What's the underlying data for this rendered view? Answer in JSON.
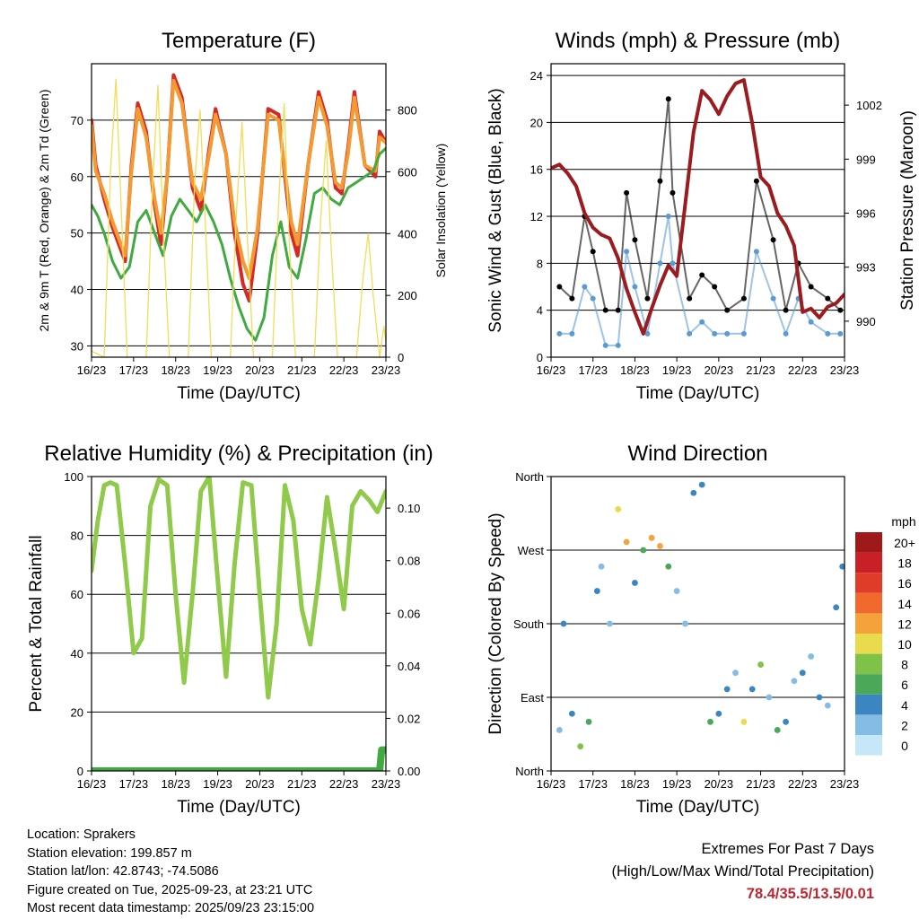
{
  "colors": {
    "red": "#d42a26",
    "orange": "#f39a33",
    "green": "#3faa3f",
    "yellow": "#f1dd58",
    "black": "#000000",
    "blue": "#5b9bd5",
    "maroon": "#9b1c20",
    "rh_green": "#8fca4a",
    "precip_green": "#3faa3f"
  },
  "x_ticks": [
    "16/23",
    "17/23",
    "18/23",
    "19/23",
    "20/23",
    "21/23",
    "22/23",
    "23/23"
  ],
  "x_label": "Time (Day/UTC)",
  "chart_data": [
    {
      "id": "temperature",
      "type": "line",
      "title": "Temperature (F)",
      "xlabel": "Time (Day/UTC)",
      "ylabel": "2m & 9m T (Red, Orange) & 2m Td (Green)",
      "ylabel_right": "Solar Insolation (Yellow)",
      "ylim": [
        28,
        80
      ],
      "yticks": [
        30,
        40,
        50,
        60,
        70
      ],
      "ylim_right": [
        0,
        950
      ],
      "yticks_right": [
        0,
        200,
        400,
        600,
        800
      ],
      "x_days": [
        0,
        7
      ],
      "series": [
        {
          "name": "2m T",
          "color": "red",
          "x": [
            0,
            0.1,
            0.3,
            0.5,
            0.7,
            0.8,
            0.95,
            1.1,
            1.3,
            1.5,
            1.65,
            1.8,
            1.95,
            2.15,
            2.4,
            2.6,
            2.8,
            2.95,
            3.2,
            3.4,
            3.6,
            3.75,
            3.95,
            4.2,
            4.45,
            4.6,
            4.75,
            4.9,
            5.15,
            5.4,
            5.6,
            5.8,
            5.95,
            6.1,
            6.25,
            6.5,
            6.75,
            6.85,
            7
          ],
          "y": [
            70,
            62,
            56,
            51,
            47,
            45,
            62,
            73,
            68,
            55,
            48,
            60,
            78,
            74,
            58,
            54,
            65,
            72,
            64,
            50,
            41,
            38,
            50,
            72,
            71,
            60,
            50,
            46,
            62,
            75,
            70,
            58,
            57,
            65,
            75,
            62,
            60,
            68,
            66
          ]
        },
        {
          "name": "9m T",
          "color": "orange",
          "x": [
            0,
            0.1,
            0.3,
            0.5,
            0.7,
            0.8,
            0.95,
            1.1,
            1.3,
            1.5,
            1.65,
            1.8,
            1.95,
            2.15,
            2.4,
            2.6,
            2.8,
            2.95,
            3.2,
            3.4,
            3.6,
            3.75,
            3.95,
            4.2,
            4.45,
            4.6,
            4.75,
            4.9,
            5.15,
            5.4,
            5.6,
            5.8,
            5.95,
            6.1,
            6.25,
            6.5,
            6.75,
            6.85,
            7
          ],
          "y": [
            69,
            61,
            57,
            52,
            48,
            46,
            61,
            72,
            67,
            56,
            50,
            60,
            77,
            73,
            59,
            56,
            64,
            71,
            64,
            52,
            45,
            42,
            51,
            71,
            70,
            61,
            52,
            48,
            62,
            74,
            69,
            59,
            58,
            64,
            74,
            62,
            61,
            67,
            66
          ]
        },
        {
          "name": "2m Td",
          "color": "green",
          "x": [
            0,
            0.15,
            0.3,
            0.5,
            0.7,
            0.9,
            1.1,
            1.3,
            1.5,
            1.7,
            1.9,
            2.1,
            2.3,
            2.5,
            2.7,
            2.9,
            3.1,
            3.3,
            3.5,
            3.7,
            3.9,
            4.1,
            4.3,
            4.5,
            4.7,
            4.9,
            5.1,
            5.3,
            5.5,
            5.7,
            5.9,
            6.1,
            6.3,
            6.5,
            6.7,
            6.85,
            7
          ],
          "y": [
            55,
            53,
            50,
            45,
            42,
            44,
            52,
            54,
            50,
            46,
            53,
            56,
            54,
            52,
            55,
            52,
            48,
            42,
            37,
            33,
            31,
            35,
            46,
            52,
            44,
            42,
            49,
            57,
            58,
            56,
            55,
            58,
            59,
            60,
            61,
            64,
            65
          ]
        },
        {
          "name": "Solar Insolation",
          "color": "yellow",
          "axis": "right",
          "x": [
            0,
            0.3,
            0.45,
            0.58,
            0.7,
            0.85,
            1.3,
            1.45,
            1.58,
            1.7,
            1.85,
            2.3,
            2.45,
            2.58,
            2.7,
            2.85,
            3.3,
            3.45,
            3.58,
            3.7,
            3.85,
            4.3,
            4.45,
            4.58,
            4.7,
            4.85,
            5.3,
            5.45,
            5.58,
            5.7,
            5.85,
            6.3,
            6.45,
            6.58,
            6.7,
            6.85,
            6.95,
            7
          ],
          "y": [
            20,
            0,
            600,
            900,
            500,
            0,
            0,
            550,
            880,
            420,
            0,
            0,
            560,
            800,
            450,
            0,
            0,
            480,
            760,
            400,
            0,
            0,
            500,
            820,
            380,
            0,
            0,
            450,
            700,
            350,
            0,
            0,
            250,
            400,
            200,
            0,
            100,
            50
          ]
        }
      ]
    },
    {
      "id": "winds",
      "type": "scatter",
      "title": "Winds (mph) & Pressure (mb)",
      "xlabel": "Time (Day/UTC)",
      "ylabel": "Sonic Wind & Gust (Blue, Black)",
      "ylabel_right": "Station Pressure (Maroon)",
      "ylim": [
        0,
        25
      ],
      "yticks": [
        0,
        4,
        8,
        12,
        16,
        20,
        24
      ],
      "ylim_right": [
        988,
        1004.3
      ],
      "yticks_right": [
        990,
        993,
        996,
        999,
        1002
      ],
      "x_days": [
        0,
        7
      ],
      "series": [
        {
          "name": "Gust",
          "color": "black",
          "x": [
            0.2,
            0.5,
            0.8,
            1.0,
            1.3,
            1.6,
            1.8,
            2.0,
            2.3,
            2.6,
            2.8,
            2.9,
            3.3,
            3.6,
            3.9,
            4.2,
            4.6,
            4.9,
            5.3,
            5.6,
            5.9,
            6.2,
            6.6,
            6.9
          ],
          "y": [
            6,
            5,
            12,
            9,
            4,
            4,
            14,
            10,
            5,
            15,
            22,
            14,
            5,
            7,
            6,
            4,
            5,
            15,
            10,
            4,
            8,
            6,
            5,
            4
          ]
        },
        {
          "name": "Sonic Wind",
          "color": "blue",
          "x": [
            0.2,
            0.5,
            0.8,
            1.0,
            1.3,
            1.6,
            1.8,
            2.0,
            2.3,
            2.6,
            2.8,
            2.9,
            3.3,
            3.6,
            3.9,
            4.2,
            4.6,
            4.9,
            5.3,
            5.6,
            5.9,
            6.2,
            6.6,
            6.9
          ],
          "y": [
            2,
            2,
            6,
            5,
            1,
            1,
            9,
            6,
            2,
            8,
            12,
            8,
            2,
            3,
            2,
            2,
            2,
            9,
            5,
            2,
            5,
            3,
            2,
            2
          ]
        },
        {
          "name": "Station Pressure",
          "color": "maroon",
          "axis": "right",
          "x": [
            0,
            0.2,
            0.4,
            0.6,
            0.8,
            1.0,
            1.2,
            1.4,
            1.6,
            1.8,
            2.0,
            2.2,
            2.4,
            2.6,
            2.8,
            3.0,
            3.2,
            3.4,
            3.6,
            3.8,
            4.0,
            4.2,
            4.4,
            4.6,
            4.8,
            5.0,
            5.2,
            5.4,
            5.6,
            5.8,
            6.0,
            6.2,
            6.4,
            6.6,
            6.8,
            7.0
          ],
          "y": [
            998.5,
            998.7,
            998.2,
            997.5,
            996.0,
            995.2,
            994.8,
            994.6,
            993.5,
            991.8,
            990.5,
            989.3,
            990.7,
            992.0,
            993.1,
            992.5,
            996.5,
            1000.5,
            1002.8,
            1002.3,
            1001.5,
            1002.5,
            1003.2,
            1003.4,
            1001.0,
            998.0,
            997.5,
            996.0,
            995.3,
            994.2,
            990.5,
            990.7,
            990.2,
            990.8,
            991.0,
            991.5
          ]
        }
      ]
    },
    {
      "id": "rh",
      "type": "line",
      "title": "Relative Humidity (%) & Precipitation (in)",
      "xlabel": "Time (Day/UTC)",
      "ylabel": "Percent & Total Rainfall",
      "ylim": [
        0,
        100
      ],
      "yticks": [
        0,
        20,
        40,
        60,
        80,
        100
      ],
      "ylim_right": [
        0,
        0.112
      ],
      "yticks_right": [
        "0.00",
        "0.02",
        "0.04",
        "0.06",
        "0.08",
        "0.10"
      ],
      "x_days": [
        0,
        7
      ],
      "series": [
        {
          "name": "Relative Humidity",
          "color": "rh_green",
          "x": [
            0,
            0.15,
            0.3,
            0.45,
            0.6,
            0.8,
            1.0,
            1.2,
            1.4,
            1.6,
            1.8,
            2.0,
            2.2,
            2.4,
            2.6,
            2.8,
            3.0,
            3.2,
            3.4,
            3.6,
            3.8,
            4.0,
            4.2,
            4.4,
            4.6,
            4.8,
            5.0,
            5.2,
            5.4,
            5.6,
            5.8,
            6.0,
            6.2,
            6.4,
            6.6,
            6.8,
            7.0
          ],
          "y": [
            68,
            85,
            97,
            98,
            97,
            70,
            40,
            45,
            90,
            99,
            97,
            60,
            30,
            60,
            95,
            100,
            65,
            32,
            70,
            98,
            97,
            60,
            25,
            50,
            97,
            85,
            55,
            43,
            65,
            93,
            75,
            55,
            90,
            95,
            92,
            88,
            95
          ]
        },
        {
          "name": "Total Precipitation",
          "color": "precip_green",
          "axis": "right",
          "x": [
            0,
            6.85,
            6.9,
            7.0
          ],
          "y": [
            0.0,
            0.0,
            0.008,
            0.008
          ]
        }
      ]
    },
    {
      "id": "wind_direction",
      "type": "scatter",
      "title": "Wind Direction",
      "xlabel": "Time (Day/UTC)",
      "ylabel": "Direction (Colored By Speed)",
      "yticks": [
        "North",
        "East",
        "South",
        "West",
        "North"
      ],
      "ylim": [
        0,
        360
      ],
      "x_days": [
        0,
        7
      ],
      "series": [
        {
          "name": "Direction",
          "x": [
            0.2,
            0.3,
            0.5,
            0.7,
            0.9,
            1.1,
            1.2,
            1.4,
            1.6,
            1.8,
            2.0,
            2.2,
            2.4,
            2.6,
            2.8,
            3.0,
            3.2,
            3.4,
            3.6,
            3.8,
            4.0,
            4.2,
            4.4,
            4.6,
            4.8,
            5.0,
            5.2,
            5.4,
            5.6,
            5.8,
            6.0,
            6.2,
            6.4,
            6.6,
            6.8,
            6.95
          ],
          "y": [
            50,
            180,
            70,
            30,
            60,
            220,
            250,
            180,
            320,
            280,
            230,
            270,
            285,
            275,
            250,
            220,
            180,
            340,
            350,
            60,
            70,
            100,
            120,
            60,
            100,
            130,
            90,
            50,
            60,
            110,
            120,
            140,
            90,
            80,
            200,
            250
          ],
          "speed": [
            2,
            3,
            4,
            8,
            6,
            3,
            2,
            1,
            10,
            12,
            4,
            6,
            12,
            11,
            6,
            2,
            1,
            4,
            3,
            6,
            4,
            3,
            2,
            10,
            4,
            8,
            2,
            6,
            4,
            2,
            3,
            2,
            4,
            2,
            3,
            4
          ]
        }
      ],
      "colorbar": {
        "title": "mph",
        "labels": [
          "20+",
          "18",
          "16",
          "14",
          "12",
          "10",
          "8",
          "6",
          "4",
          "2",
          "0"
        ],
        "colors": [
          "#9e1a1a",
          "#c82026",
          "#e03c2a",
          "#f2692e",
          "#f6a23a",
          "#e8dc4e",
          "#7fc24a",
          "#4aa85a",
          "#3b85c0",
          "#85bce6",
          "#c6e7f7"
        ]
      }
    }
  ],
  "info": {
    "location": "Location: Sprakers",
    "elevation": "Station elevation: 199.857 m",
    "latlon": "Station lat/lon: 42.8743; -74.5086",
    "created": "Figure created on Tue, 2025-09-23, at 23:21 UTC",
    "recent": "Most recent data timestamp: 2025/09/23 23:15:00"
  },
  "extremes": {
    "title": "Extremes For Past 7 Days",
    "subtitle": "(High/Low/Max Wind/Total Precipitation)",
    "values": "78.4/35.5/13.5/0.01"
  }
}
